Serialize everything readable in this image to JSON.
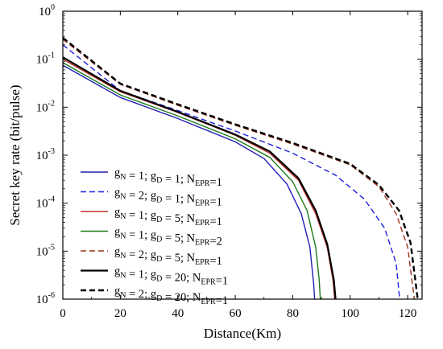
{
  "chart_data": {
    "type": "line",
    "xlabel": "Distance(Km)",
    "ylabel": "Secret key rate (bit/pulse)",
    "xlim": [
      0,
      125
    ],
    "ylim": [
      1e-06,
      1
    ],
    "yscale": "log",
    "grid": false,
    "legend_position": "lower-left",
    "x_ticks": [
      0,
      20,
      40,
      60,
      80,
      100,
      120
    ],
    "y_ticks": [
      {
        "value": 1e-06,
        "base": "10",
        "exp": "-6"
      },
      {
        "value": 1e-05,
        "base": "10",
        "exp": "-5"
      },
      {
        "value": 0.0001,
        "base": "10",
        "exp": "-4"
      },
      {
        "value": 0.001,
        "base": "10",
        "exp": "-3"
      },
      {
        "value": 0.01,
        "base": "10",
        "exp": "-2"
      },
      {
        "value": 0.1,
        "base": "10",
        "exp": "-1"
      },
      {
        "value": 1,
        "base": "10",
        "exp": "0"
      }
    ],
    "series": [
      {
        "legend": {
          "gN": "1",
          "gD": "1",
          "NEPR": "1"
        },
        "color": "#1f1fb4",
        "style": "solid",
        "width": 1.4,
        "points": [
          [
            0,
            0.075
          ],
          [
            20,
            0.016
          ],
          [
            40,
            0.0058
          ],
          [
            60,
            0.0019
          ],
          [
            70,
            0.00085
          ],
          [
            78,
            0.00025
          ],
          [
            83,
            6e-05
          ],
          [
            86,
            1.2e-05
          ],
          [
            87.3,
            2e-06
          ],
          [
            87.6,
            1e-06
          ]
        ]
      },
      {
        "legend": {
          "gN": "2",
          "gD": "1",
          "NEPR": "1"
        },
        "color": "#1f1fe0",
        "style": "dashed",
        "width": 1.4,
        "points": [
          [
            0,
            0.2
          ],
          [
            20,
            0.022
          ],
          [
            40,
            0.0085
          ],
          [
            60,
            0.0032
          ],
          [
            80,
            0.0011
          ],
          [
            95,
            0.00038
          ],
          [
            105,
            0.00012
          ],
          [
            112,
            3e-05
          ],
          [
            116,
            5.5e-06
          ],
          [
            117.2,
            1e-06
          ]
        ]
      },
      {
        "legend": {
          "gN": "1",
          "gD": "5",
          "NEPR": "1"
        },
        "color": "#c0302a",
        "style": "solid",
        "width": 1.4,
        "points": [
          [
            0,
            0.1
          ],
          [
            20,
            0.021
          ],
          [
            40,
            0.0078
          ],
          [
            60,
            0.0026
          ],
          [
            72,
            0.0011
          ],
          [
            82,
            0.0003
          ],
          [
            88,
            6e-05
          ],
          [
            92,
            1.2e-05
          ],
          [
            94,
            2.5e-06
          ],
          [
            94.6,
            1e-06
          ]
        ]
      },
      {
        "legend": {
          "gN": "1",
          "gD": "5",
          "NEPR": "2"
        },
        "color": "#1a7a1a",
        "style": "solid",
        "width": 1.4,
        "points": [
          [
            0,
            0.085
          ],
          [
            20,
            0.018
          ],
          [
            40,
            0.0066
          ],
          [
            60,
            0.0022
          ],
          [
            72,
            0.0009
          ],
          [
            80,
            0.00028
          ],
          [
            85,
            7e-05
          ],
          [
            88,
            1.2e-05
          ],
          [
            89.2,
            2.5e-06
          ],
          [
            89.6,
            1e-06
          ]
        ]
      },
      {
        "legend": {
          "gN": "2",
          "gD": "5",
          "NEPR": "1"
        },
        "color": "#a0301a",
        "style": "dashed",
        "width": 1.4,
        "points": [
          [
            0,
            0.26
          ],
          [
            20,
            0.03
          ],
          [
            40,
            0.011
          ],
          [
            60,
            0.0042
          ],
          [
            80,
            0.0017
          ],
          [
            100,
            0.00063
          ],
          [
            110,
            0.00022
          ],
          [
            116,
            6e-05
          ],
          [
            120,
            1.2e-05
          ],
          [
            122.3,
            1e-06
          ]
        ]
      },
      {
        "legend": {
          "gN": "1",
          "gD": "20",
          "NEPR": "1"
        },
        "color": "#000000",
        "style": "solid",
        "width": 2.2,
        "points": [
          [
            0,
            0.11
          ],
          [
            20,
            0.022
          ],
          [
            40,
            0.008
          ],
          [
            60,
            0.0027
          ],
          [
            72,
            0.0012
          ],
          [
            82,
            0.00033
          ],
          [
            88,
            7e-05
          ],
          [
            92,
            1.4e-05
          ],
          [
            94.3,
            2.5e-06
          ],
          [
            94.9,
            1e-06
          ]
        ]
      },
      {
        "legend": {
          "gN": "2",
          "gD": "20",
          "NEPR": "1"
        },
        "color": "#000000",
        "style": "dashed",
        "width": 2.4,
        "points": [
          [
            0,
            0.28
          ],
          [
            20,
            0.031
          ],
          [
            40,
            0.0115
          ],
          [
            60,
            0.0044
          ],
          [
            80,
            0.0018
          ],
          [
            100,
            0.00066
          ],
          [
            110,
            0.00024
          ],
          [
            117,
            7e-05
          ],
          [
            121,
            1.5e-05
          ],
          [
            123.5,
            1e-06
          ]
        ]
      }
    ]
  }
}
